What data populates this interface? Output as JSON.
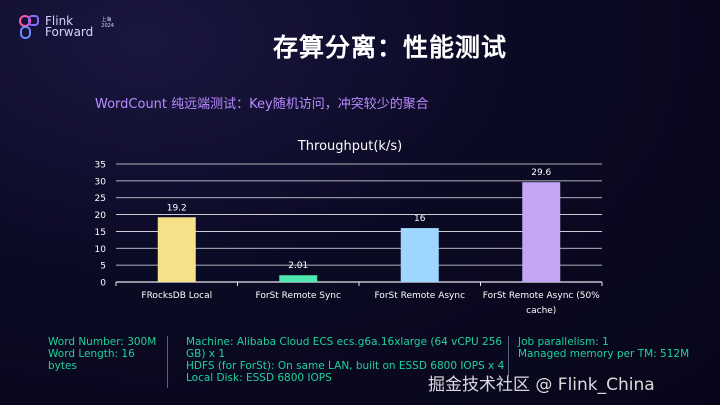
{
  "logo": {
    "line1": "Flink",
    "line2": "Forward",
    "badge": "上海 2024"
  },
  "slide": {
    "title": "存算分离：性能测试",
    "subtitle": "WordCount 纯远端测试：Key随机访问，冲突较少的聚合"
  },
  "chart_data": {
    "type": "bar",
    "title": "Throughput(k/s)",
    "categories": [
      "FRocksDB Local",
      "ForSt Remote Sync",
      "ForSt Remote Async",
      "ForSt Remote Async (50% cache)"
    ],
    "values": [
      19.2,
      2.01,
      16,
      29.6
    ],
    "data_labels": [
      "19.2",
      "2.01",
      "16",
      "29.6"
    ],
    "colors": [
      "#f7e08a",
      "#4ee8b0",
      "#9ed6ff",
      "#c4a6f5"
    ],
    "ylim": [
      0,
      35
    ],
    "yticks": [
      "0",
      "5",
      "10",
      "15",
      "20",
      "25",
      "30",
      "35"
    ],
    "grid": true,
    "legend": "none"
  },
  "footer": {
    "col1": [
      "Word Number: 300M",
      "Word Length: 16",
      "bytes"
    ],
    "col2": [
      "Machine: Alibaba Cloud ECS ecs.g6a.16xlarge (64 vCPU 256",
      "GB) x 1",
      "HDFS (for ForSt): On same LAN, built on ESSD 6800 IOPS x 4",
      "Local Disk: ESSD 6800 IOPS"
    ],
    "col3": [
      "Job parallelism: 1",
      "Managed memory per TM: 512M"
    ]
  },
  "watermark": "掘金技术社区 @ Flink_China"
}
